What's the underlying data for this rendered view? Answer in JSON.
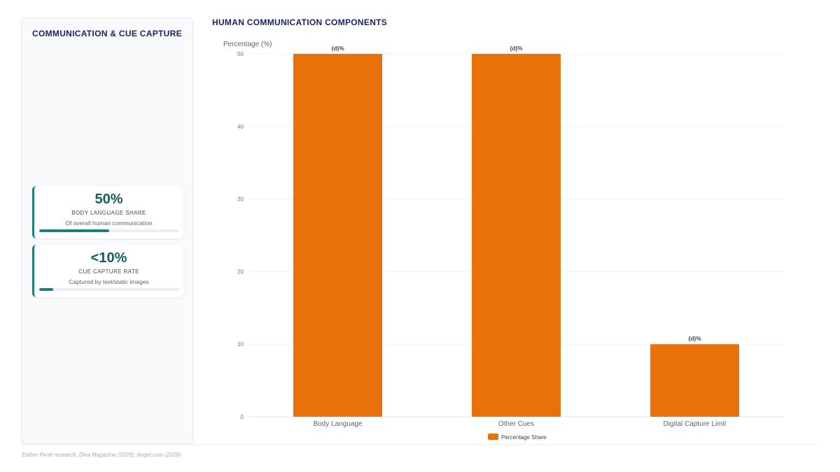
{
  "sidebar": {
    "title": "COMMUNICATION & CUE CAPTURE",
    "cards": [
      {
        "value": "50%",
        "label": "BODY LANGUAGE SHARE",
        "description": "Of overall human communication",
        "progress_percent": 50
      },
      {
        "value": "<10%",
        "label": "CUE CAPTURE RATE",
        "description": "Captured by text/static images",
        "progress_percent": 10
      }
    ]
  },
  "chart_data": {
    "type": "bar",
    "title": "HUMAN COMMUNICATION COMPONENTS",
    "ylabel": "Percentage (%)",
    "xlabel": "",
    "categories": [
      "Body Language",
      "Other Cues",
      "Digital Capture Limit"
    ],
    "series": [
      {
        "name": "Percentage Share",
        "values": [
          50,
          50,
          10
        ],
        "color": "#e8710a"
      }
    ],
    "data_labels": [
      "{d}%",
      "{d}%",
      "{d}%"
    ],
    "ylim": [
      0,
      50
    ],
    "yticks": [
      "0",
      "10",
      "20",
      "30",
      "40",
      "50"
    ],
    "grid": true,
    "legend_position": "bottom-center"
  },
  "source": "Esther Perel research, Diva Magazine (2025), Angel.com (2026)",
  "colors": {
    "accent": "#1e7d84",
    "bar": "#e8710a",
    "title": "#1a2466"
  }
}
